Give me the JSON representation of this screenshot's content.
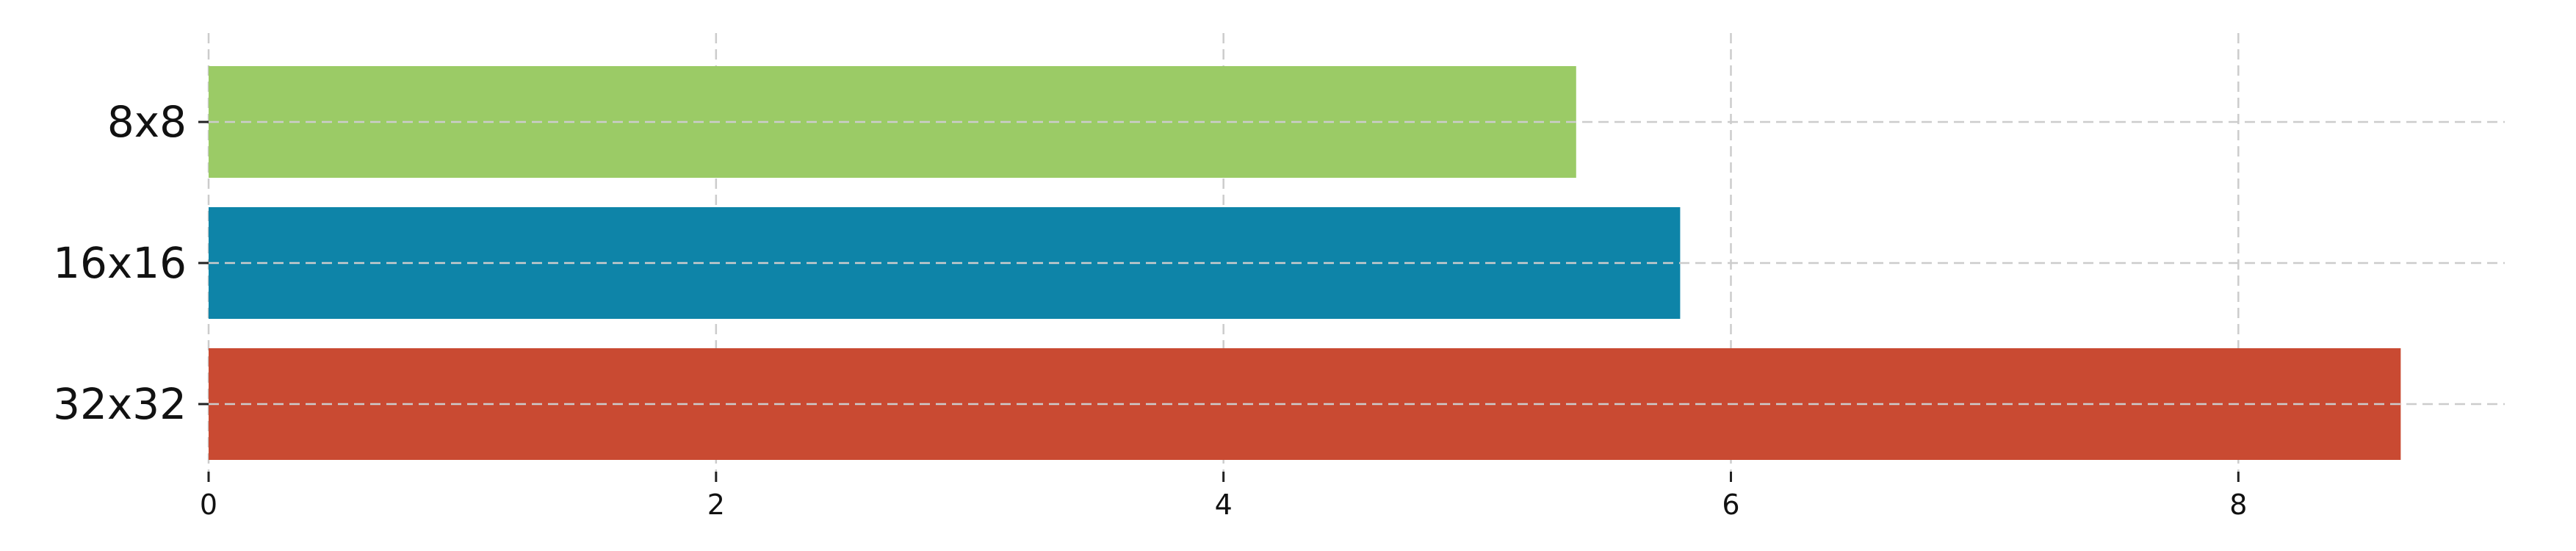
{
  "chart_data": {
    "type": "bar",
    "orientation": "horizontal",
    "categories": [
      "8x8",
      "16x16",
      "32x32"
    ],
    "values": [
      5.39,
      5.8,
      8.64
    ],
    "colors": [
      "#9bcb66",
      "#0e84a8",
      "#c94a32"
    ],
    "xlim": [
      0,
      9.05
    ],
    "xticks": [
      0,
      2,
      4,
      6,
      8
    ],
    "xtick_labels": [
      "0",
      "2",
      "4",
      "6",
      "8"
    ],
    "title": "",
    "xlabel": "",
    "ylabel": "",
    "grid": true,
    "legend": "none"
  }
}
